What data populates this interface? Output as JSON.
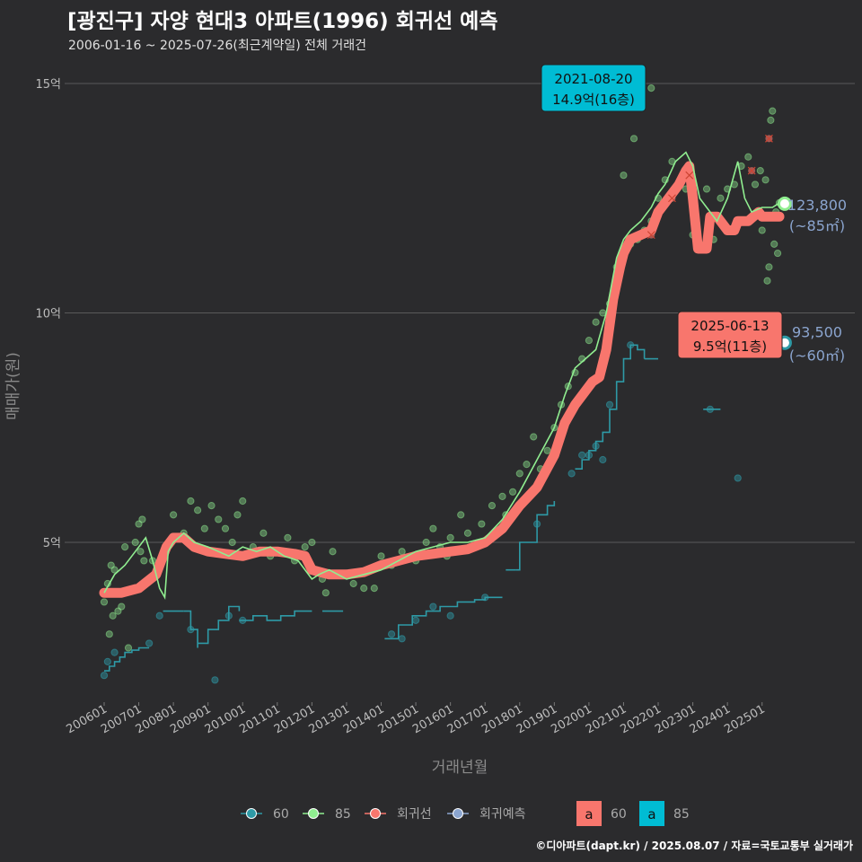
{
  "chart_data": {
    "type": "line",
    "title": "[광진구] 자양 현대3 아파트(1996) 회귀선 예측",
    "subtitle": "2006-01-16 ~ 2025-07-26(최근계약일) 전체 거래건",
    "caption": "©디아파트(dapt.kr) / 2025.08.07 / 자료=국토교통부 실거래가",
    "xlabel": "거래년월",
    "ylabel": "매매가(원)",
    "xlim": [
      2006.0,
      2025.6
    ],
    "ylim": [
      1.0,
      16.0
    ],
    "ytick_values": [
      5,
      10,
      15
    ],
    "ytick_labels": [
      "5억",
      "10억",
      "15억"
    ],
    "xtick_values": [
      2006,
      2007,
      2008,
      2009,
      2010,
      2011,
      2012,
      2013,
      2014,
      2015,
      2016,
      2017,
      2018,
      2019,
      2020,
      2021,
      2022,
      2023,
      2024,
      2025
    ],
    "xtick_labels": [
      "200601",
      "200701",
      "200801",
      "200901",
      "201001",
      "201101",
      "201201",
      "201301",
      "201401",
      "201501",
      "201601",
      "201701",
      "201801",
      "201901",
      "202001",
      "202101",
      "202201",
      "202301",
      "202401",
      "202501"
    ],
    "grid": true,
    "colors": {
      "background": "#2b2b2d",
      "grid": "#5a5a5a",
      "s60": "#2e9aa6",
      "s85": "#90ee90",
      "regression": "#f8766d",
      "forecast": "#8ba5cf",
      "label85_box": "#00bcd4",
      "label60_box": "#f8766d"
    },
    "series": [
      {
        "name": "85",
        "kind": "moving-average",
        "x": [
          2006.0,
          2006.3,
          2006.6,
          2006.9,
          2007.2,
          2007.4,
          2007.6,
          2007.75,
          2007.85,
          2008.0,
          2008.3,
          2008.6,
          2009.0,
          2009.3,
          2009.6,
          2010.0,
          2010.4,
          2010.8,
          2011.2,
          2011.6,
          2012.0,
          2012.2,
          2012.5,
          2013.0,
          2013.5,
          2014.0,
          2014.5,
          2015.0,
          2015.5,
          2016.0,
          2016.5,
          2017.0,
          2017.5,
          2018.0,
          2018.5,
          2019.0,
          2019.3,
          2019.6,
          2019.9,
          2020.2,
          2020.5,
          2020.8,
          2021.0,
          2021.2,
          2021.5,
          2021.8,
          2022.0,
          2022.2,
          2022.5,
          2022.8,
          2023.0,
          2023.2,
          2023.4,
          2023.7,
          2024.0,
          2024.3,
          2024.5,
          2024.7,
          2025.0,
          2025.3,
          2025.5
        ],
        "y": [
          3.9,
          4.3,
          4.5,
          4.8,
          5.1,
          4.6,
          4.0,
          3.8,
          4.8,
          5.0,
          5.2,
          5.0,
          4.9,
          4.8,
          4.7,
          4.9,
          4.8,
          4.9,
          4.7,
          4.6,
          4.2,
          4.3,
          4.4,
          4.2,
          4.3,
          4.4,
          4.6,
          4.8,
          4.9,
          5.0,
          5.0,
          5.1,
          5.5,
          6.1,
          6.8,
          7.5,
          8.2,
          8.8,
          9.0,
          9.2,
          10.0,
          11.2,
          11.6,
          11.8,
          12.0,
          12.3,
          12.6,
          12.8,
          13.3,
          13.5,
          13.2,
          12.5,
          12.3,
          12.0,
          12.5,
          13.3,
          12.5,
          12.2,
          12.3,
          12.3,
          12.4
        ]
      },
      {
        "name": "회귀선",
        "kind": "regression",
        "x": [
          2006.0,
          2006.5,
          2007.0,
          2007.5,
          2007.8,
          2008.0,
          2008.3,
          2008.6,
          2009.0,
          2009.5,
          2010.0,
          2010.5,
          2011.0,
          2011.5,
          2011.8,
          2012.0,
          2012.5,
          2013.0,
          2013.5,
          2014.0,
          2014.5,
          2015.0,
          2015.5,
          2016.0,
          2016.5,
          2017.0,
          2017.5,
          2018.0,
          2018.5,
          2019.0,
          2019.3,
          2019.6,
          2019.9,
          2020.1,
          2020.3,
          2020.5,
          2020.7,
          2020.9,
          2021.0,
          2021.2,
          2021.5,
          2021.8,
          2022.0,
          2022.2,
          2022.4,
          2022.6,
          2022.8,
          2022.9,
          2023.0,
          2023.15,
          2023.25,
          2023.4,
          2023.5,
          2023.7,
          2024.0,
          2024.2,
          2024.3,
          2024.6,
          2024.9,
          2025.0,
          2025.3,
          2025.5
        ],
        "y": [
          3.9,
          3.9,
          4.0,
          4.3,
          4.9,
          5.1,
          5.1,
          4.9,
          4.8,
          4.75,
          4.7,
          4.8,
          4.8,
          4.75,
          4.7,
          4.4,
          4.3,
          4.3,
          4.35,
          4.5,
          4.6,
          4.7,
          4.75,
          4.8,
          4.85,
          5.0,
          5.3,
          5.8,
          6.2,
          6.9,
          7.6,
          8.0,
          8.3,
          8.5,
          8.6,
          9.2,
          10.3,
          11.0,
          11.3,
          11.6,
          11.7,
          11.8,
          12.2,
          12.4,
          12.6,
          12.8,
          13.1,
          13.2,
          12.5,
          11.4,
          11.4,
          11.4,
          12.1,
          12.1,
          11.8,
          11.8,
          12.0,
          12.0,
          12.2,
          12.1,
          12.1,
          12.1
        ]
      },
      {
        "name": "60",
        "kind": "moving-average",
        "segments": [
          {
            "x": [
              2006.0,
              2006.15,
              2006.3,
              2006.45,
              2006.6,
              2006.8,
              2007.0,
              2007.3
            ],
            "y": [
              2.2,
              2.3,
              2.4,
              2.5,
              2.6,
              2.65,
              2.7,
              2.7
            ]
          },
          {
            "x": [
              2007.7,
              2008.3
            ],
            "y": [
              3.5,
              3.5
            ]
          },
          {
            "x": [
              2008.3,
              2008.5,
              2008.7
            ],
            "y": [
              3.5,
              3.1,
              2.7
            ]
          },
          {
            "x": [
              2008.7,
              2009.0,
              2009.3,
              2009.6,
              2009.9
            ],
            "y": [
              2.8,
              3.1,
              3.3,
              3.6,
              3.5
            ]
          },
          {
            "x": [
              2009.9,
              2010.3,
              2010.7,
              2011.1,
              2011.5,
              2012.0
            ],
            "y": [
              3.3,
              3.4,
              3.3,
              3.4,
              3.5,
              3.5
            ]
          },
          {
            "x": [
              2012.3,
              2012.9
            ],
            "y": [
              3.5,
              3.5
            ]
          },
          {
            "x": [
              2014.1,
              2014.5,
              2014.9,
              2015.3,
              2015.7,
              2016.2,
              2016.7,
              2017.0,
              2017.5
            ],
            "y": [
              2.9,
              3.2,
              3.4,
              3.5,
              3.6,
              3.7,
              3.75,
              3.8,
              3.8
            ]
          },
          {
            "x": [
              2017.6,
              2017.9
            ],
            "y": [
              4.4,
              4.4
            ]
          },
          {
            "x": [
              2017.9,
              2018.0,
              2018.2,
              2018.5,
              2018.8,
              2019.0
            ],
            "y": [
              4.4,
              5.0,
              5.0,
              5.6,
              5.8,
              5.9
            ]
          },
          {
            "x": [
              2019.6,
              2019.8,
              2020.0,
              2020.2,
              2020.4,
              2020.6,
              2020.8,
              2021.0,
              2021.2,
              2021.4,
              2021.6
            ],
            "y": [
              6.6,
              6.8,
              7.0,
              7.2,
              7.4,
              7.9,
              8.5,
              9.0,
              9.3,
              9.2,
              9.0
            ]
          },
          {
            "x": [
              2021.6,
              2022.0
            ],
            "y": [
              9.0,
              9.0
            ]
          },
          {
            "x": [
              2023.3,
              2023.8
            ],
            "y": [
              7.9,
              7.9
            ]
          }
        ]
      }
    ],
    "scatter": {
      "s85": [
        [
          2006.0,
          3.7
        ],
        [
          2006.1,
          4.1
        ],
        [
          2006.15,
          3.0
        ],
        [
          2006.2,
          4.5
        ],
        [
          2006.25,
          3.4
        ],
        [
          2006.3,
          4.4
        ],
        [
          2006.35,
          3.9
        ],
        [
          2006.4,
          3.5
        ],
        [
          2006.5,
          3.6
        ],
        [
          2006.6,
          4.9
        ],
        [
          2006.7,
          2.7
        ],
        [
          2006.9,
          5.0
        ],
        [
          2007.0,
          5.4
        ],
        [
          2007.05,
          4.8
        ],
        [
          2007.1,
          5.5
        ],
        [
          2007.15,
          4.6
        ],
        [
          2007.4,
          4.6
        ],
        [
          2008.0,
          5.6
        ],
        [
          2008.3,
          5.2
        ],
        [
          2008.5,
          5.9
        ],
        [
          2008.7,
          5.7
        ],
        [
          2008.9,
          5.3
        ],
        [
          2009.1,
          5.8
        ],
        [
          2009.3,
          5.5
        ],
        [
          2009.5,
          5.3
        ],
        [
          2009.7,
          5.0
        ],
        [
          2009.85,
          5.6
        ],
        [
          2010.0,
          5.9
        ],
        [
          2010.3,
          4.9
        ],
        [
          2010.6,
          5.2
        ],
        [
          2010.8,
          4.7
        ],
        [
          2011.1,
          4.8
        ],
        [
          2011.3,
          5.1
        ],
        [
          2011.5,
          4.6
        ],
        [
          2011.8,
          4.9
        ],
        [
          2012.0,
          5.0
        ],
        [
          2012.3,
          4.2
        ],
        [
          2012.6,
          4.8
        ],
        [
          2012.9,
          4.3
        ],
        [
          2013.2,
          4.1
        ],
        [
          2013.5,
          4.0
        ],
        [
          2013.8,
          4.0
        ],
        [
          2014.0,
          4.7
        ],
        [
          2014.3,
          4.5
        ],
        [
          2014.6,
          4.8
        ],
        [
          2015.0,
          4.6
        ],
        [
          2015.3,
          5.0
        ],
        [
          2015.5,
          5.3
        ],
        [
          2015.7,
          4.9
        ],
        [
          2016.0,
          5.1
        ],
        [
          2016.3,
          5.6
        ],
        [
          2016.5,
          5.2
        ],
        [
          2016.7,
          4.9
        ],
        [
          2016.9,
          5.4
        ],
        [
          2017.2,
          5.8
        ],
        [
          2017.5,
          6.0
        ],
        [
          2017.8,
          6.1
        ],
        [
          2018.0,
          6.5
        ],
        [
          2018.2,
          6.7
        ],
        [
          2018.4,
          7.3
        ],
        [
          2018.6,
          6.6
        ],
        [
          2018.8,
          7.0
        ],
        [
          2019.0,
          7.5
        ],
        [
          2019.2,
          8.0
        ],
        [
          2019.4,
          8.4
        ],
        [
          2019.6,
          8.7
        ],
        [
          2019.8,
          9.0
        ],
        [
          2020.0,
          9.4
        ],
        [
          2020.2,
          9.8
        ],
        [
          2020.4,
          10.0
        ],
        [
          2020.6,
          10.2
        ],
        [
          2020.8,
          11.0
        ],
        [
          2021.0,
          11.3
        ],
        [
          2021.2,
          11.5
        ],
        [
          2021.4,
          11.6
        ],
        [
          2021.6,
          11.8
        ],
        [
          2021.8,
          12.0
        ],
        [
          2022.0,
          12.5
        ],
        [
          2022.2,
          12.9
        ],
        [
          2022.4,
          13.3
        ],
        [
          2022.6,
          12.8
        ],
        [
          2022.8,
          12.7
        ],
        [
          2023.0,
          11.7
        ],
        [
          2023.2,
          11.5
        ],
        [
          2023.4,
          12.7
        ],
        [
          2023.6,
          11.6
        ],
        [
          2023.8,
          12.5
        ],
        [
          2024.0,
          12.7
        ],
        [
          2024.2,
          12.8
        ],
        [
          2024.4,
          13.2
        ],
        [
          2024.6,
          13.4
        ],
        [
          2024.8,
          12.8
        ],
        [
          2024.95,
          13.1
        ],
        [
          2025.0,
          11.8
        ],
        [
          2025.1,
          12.9
        ],
        [
          2025.15,
          10.7
        ],
        [
          2025.2,
          11.0
        ],
        [
          2025.25,
          14.2
        ],
        [
          2025.3,
          14.4
        ],
        [
          2025.35,
          11.5
        ],
        [
          2025.4,
          12.2
        ],
        [
          2025.45,
          11.3
        ],
        [
          2025.5,
          12.4
        ],
        [
          2021.0,
          13.0
        ],
        [
          2021.3,
          13.8
        ],
        [
          2021.8,
          14.9
        ],
        [
          2015.9,
          4.7
        ],
        [
          2017.6,
          5.6
        ],
        [
          2012.4,
          3.9
        ]
      ],
      "s60": [
        [
          2006.0,
          2.1
        ],
        [
          2006.1,
          2.4
        ],
        [
          2006.3,
          2.6
        ],
        [
          2007.3,
          2.8
        ],
        [
          2007.6,
          3.4
        ],
        [
          2008.5,
          3.1
        ],
        [
          2009.2,
          2.0
        ],
        [
          2009.6,
          3.4
        ],
        [
          2010.0,
          3.3
        ],
        [
          2014.3,
          3.0
        ],
        [
          2014.6,
          2.9
        ],
        [
          2015.0,
          3.3
        ],
        [
          2015.5,
          3.6
        ],
        [
          2016.0,
          3.4
        ],
        [
          2017.0,
          3.8
        ],
        [
          2018.5,
          5.4
        ],
        [
          2019.5,
          6.5
        ],
        [
          2019.8,
          6.9
        ],
        [
          2020.0,
          6.9
        ],
        [
          2020.2,
          7.1
        ],
        [
          2020.4,
          6.8
        ],
        [
          2020.6,
          8.0
        ],
        [
          2021.2,
          9.3
        ],
        [
          2023.5,
          7.9
        ],
        [
          2024.3,
          6.4
        ],
        [
          2025.4,
          9.4
        ]
      ],
      "labels85": [
        [
          2021.8,
          11.7
        ],
        [
          2022.4,
          12.5
        ],
        [
          2022.9,
          13.0
        ],
        [
          2024.7,
          13.1
        ],
        [
          2025.2,
          13.8
        ]
      ]
    },
    "highlights": [
      {
        "series": "85",
        "date": "2021-08-20",
        "price": "14.9억(16층)",
        "x": 2021.63,
        "y": 14.9
      },
      {
        "series": "60",
        "date": "2025-06-13",
        "price": "9.5억(11층)",
        "x": 2025.45,
        "y": 9.5
      }
    ],
    "forecast": [
      {
        "series": "85",
        "x": 2025.55,
        "y": 12.38,
        "value": "123,800",
        "area": "(~85㎡)"
      },
      {
        "series": "60",
        "x": 2025.55,
        "y": 9.35,
        "value": "93,500",
        "area": "(~60㎡)"
      }
    ],
    "legend": {
      "placement": "bottom",
      "items": [
        "60",
        "85",
        "회귀선",
        "회귀예측"
      ],
      "box_items": [
        {
          "key": "a",
          "label": "60"
        },
        {
          "key": "a",
          "label": "85"
        }
      ]
    }
  }
}
